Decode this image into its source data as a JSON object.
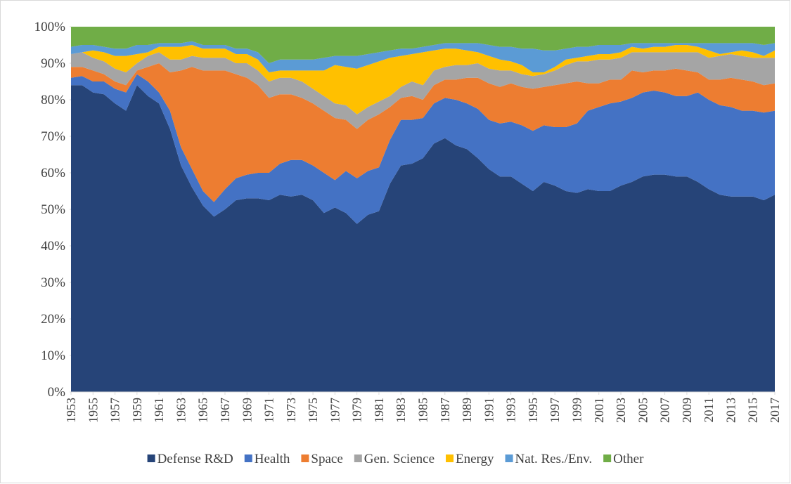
{
  "chart_data": {
    "type": "stacked_area_percent",
    "x": [
      1953,
      1954,
      1955,
      1956,
      1957,
      1958,
      1959,
      1960,
      1961,
      1962,
      1963,
      1964,
      1965,
      1966,
      1967,
      1968,
      1969,
      1970,
      1971,
      1972,
      1973,
      1974,
      1975,
      1976,
      1977,
      1978,
      1979,
      1980,
      1981,
      1982,
      1983,
      1984,
      1985,
      1986,
      1987,
      1988,
      1989,
      1990,
      1991,
      1992,
      1993,
      1994,
      1995,
      1996,
      1997,
      1998,
      1999,
      2000,
      2001,
      2002,
      2003,
      2004,
      2005,
      2006,
      2007,
      2008,
      2009,
      2010,
      2011,
      2012,
      2013,
      2014,
      2015,
      2016,
      2017
    ],
    "xlim": [
      1953,
      2017
    ],
    "xticks": [
      1953,
      1955,
      1957,
      1959,
      1961,
      1963,
      1965,
      1967,
      1969,
      1971,
      1973,
      1975,
      1977,
      1979,
      1981,
      1983,
      1985,
      1987,
      1989,
      1991,
      1993,
      1995,
      1997,
      1999,
      2001,
      2003,
      2005,
      2007,
      2009,
      2011,
      2013,
      2015,
      2017
    ],
    "ylim": [
      0,
      100
    ],
    "yticks": [
      {
        "value": 0,
        "label": "0%"
      },
      {
        "value": 10,
        "label": "10%"
      },
      {
        "value": 20,
        "label": "20%"
      },
      {
        "value": 30,
        "label": "30%"
      },
      {
        "value": 40,
        "label": "40%"
      },
      {
        "value": 50,
        "label": "50%"
      },
      {
        "value": 60,
        "label": "60%"
      },
      {
        "value": 70,
        "label": "70%"
      },
      {
        "value": 80,
        "label": "80%"
      },
      {
        "value": 90,
        "label": "90%"
      },
      {
        "value": 100,
        "label": "100%"
      }
    ],
    "legend": "bottom",
    "series": [
      {
        "name": "Defense R&D",
        "color": "#264478",
        "values": [
          84,
          84,
          82,
          81.5,
          79,
          77,
          84,
          81,
          79,
          72,
          62,
          56,
          51,
          48,
          50,
          52.5,
          53,
          53,
          52.5,
          54,
          53.5,
          54,
          52.5,
          49,
          50.5,
          49,
          46,
          48.5,
          49.5,
          57,
          62,
          62.5,
          64,
          68,
          69.5,
          67.5,
          66.5,
          64,
          61,
          59,
          59,
          57,
          55,
          57.5,
          56.5,
          55,
          54.5,
          55.5,
          55,
          55,
          56.5,
          57.5,
          59,
          59.5,
          59.5,
          59,
          59,
          57.5,
          55.5,
          54,
          53.5,
          53.5,
          53.5,
          52.5,
          54
        ]
      },
      {
        "name": "Health",
        "color": "#4472c4",
        "values": [
          2,
          2.5,
          3,
          3.5,
          4,
          5,
          3,
          4,
          3,
          5,
          5,
          5,
          4,
          4,
          5.5,
          6,
          6.5,
          7,
          7.5,
          8.5,
          10,
          9.5,
          9.5,
          11,
          7.5,
          11.5,
          12.5,
          12,
          12,
          12,
          12.5,
          12,
          11,
          11,
          11,
          12.5,
          12.5,
          13.5,
          13.5,
          14.5,
          15,
          16,
          16.5,
          15.5,
          16,
          17.5,
          19,
          21.5,
          23,
          24,
          23,
          23,
          23,
          23,
          22.5,
          22,
          22,
          24.5,
          24.5,
          24.5,
          24.5,
          23.5,
          23.5,
          24,
          23
        ]
      },
      {
        "name": "Space",
        "color": "#ed7d31",
        "values": [
          3,
          2.5,
          3,
          2,
          2,
          2,
          1,
          4,
          8,
          10.5,
          21,
          28,
          33,
          36,
          32.5,
          28.5,
          26.5,
          24,
          20.5,
          19,
          18,
          17,
          17,
          17,
          17,
          14,
          13.5,
          14,
          14.5,
          9,
          6,
          6.5,
          5,
          5,
          5,
          5.5,
          7,
          8.5,
          10,
          10,
          10.5,
          10.5,
          11.5,
          10.5,
          11.5,
          12,
          11.5,
          7.5,
          6.5,
          6.5,
          6,
          7.5,
          5.5,
          5.5,
          6,
          7.5,
          7,
          5.5,
          5.5,
          7,
          8,
          8.5,
          8,
          7.5,
          7.5
        ]
      },
      {
        "name": "Gen. Science",
        "color": "#a5a5a5",
        "values": [
          3.5,
          4,
          3.5,
          3.5,
          3.5,
          3.5,
          2,
          3,
          3,
          3.5,
          3,
          3,
          3.5,
          3.5,
          3.5,
          3,
          4,
          4,
          4.5,
          4.5,
          4.5,
          4.5,
          4,
          4,
          4,
          4,
          4,
          3.5,
          3.5,
          3,
          3,
          4,
          4,
          4,
          3.5,
          4,
          3.5,
          4,
          4,
          4.5,
          3.5,
          3.5,
          3.5,
          3.5,
          4,
          5,
          5.5,
          6,
          6.5,
          5.5,
          6,
          5,
          5.5,
          5,
          5,
          4.5,
          5,
          5.5,
          6,
          6.5,
          6.5,
          6.5,
          6.5,
          7.5,
          7
        ]
      },
      {
        "name": "Energy",
        "color": "#ffc000",
        "values": [
          0,
          0,
          2,
          2.5,
          3.5,
          4.5,
          2.5,
          1,
          1.5,
          3.5,
          3.5,
          3,
          2.5,
          2.5,
          2.5,
          2.5,
          2.5,
          3,
          2.5,
          2,
          2,
          3,
          5,
          7,
          10.5,
          10.5,
          12.5,
          11.5,
          11,
          10.5,
          8.5,
          7.5,
          9,
          5.5,
          5,
          4.5,
          4,
          3,
          3.5,
          3,
          2.5,
          2.5,
          1,
          0.5,
          1,
          1.5,
          1,
          1.5,
          1.5,
          1.5,
          1.5,
          1.5,
          1,
          1.5,
          1.5,
          2,
          2,
          1.5,
          2,
          0.5,
          0.5,
          1.5,
          1.5,
          0.5,
          2
        ]
      },
      {
        "name": "Nat. Res./Env.",
        "color": "#5b9bd5",
        "values": [
          2,
          2,
          1.5,
          1.5,
          2,
          2,
          2.5,
          2,
          1,
          1,
          1,
          1,
          1,
          1,
          1,
          1.5,
          1.5,
          2,
          2.5,
          3,
          3,
          3,
          3,
          3.5,
          2.5,
          3,
          3.5,
          3,
          2.5,
          2,
          2,
          1.5,
          1.5,
          1.5,
          1.5,
          1.5,
          2,
          2.5,
          3,
          3.5,
          4,
          4.5,
          6.5,
          6,
          4.5,
          3,
          3,
          2.5,
          2.5,
          2.5,
          2,
          1,
          1.5,
          1,
          1,
          0.5,
          0.5,
          1,
          2,
          3,
          2.5,
          2,
          2.5,
          3,
          2
        ]
      },
      {
        "name": "Other",
        "color": "#70ad47",
        "values": [
          5.5,
          5,
          5,
          5.5,
          6,
          6,
          5,
          5,
          4.5,
          4.5,
          4.5,
          4,
          5,
          5,
          5,
          6,
          6,
          7,
          10,
          9,
          9,
          9,
          9,
          8.5,
          8,
          8,
          8,
          7.5,
          7,
          6.5,
          6,
          6,
          5.5,
          5,
          4.5,
          4.5,
          4.5,
          4.5,
          5,
          5.5,
          5.5,
          6,
          6,
          6.5,
          6.5,
          6,
          5.5,
          5.5,
          5,
          5,
          5,
          4.5,
          4.5,
          4.5,
          4.5,
          4.5,
          4.5,
          4.5,
          4.5,
          4.5,
          4.5,
          4.5,
          4.5,
          5,
          4.5
        ]
      }
    ]
  }
}
